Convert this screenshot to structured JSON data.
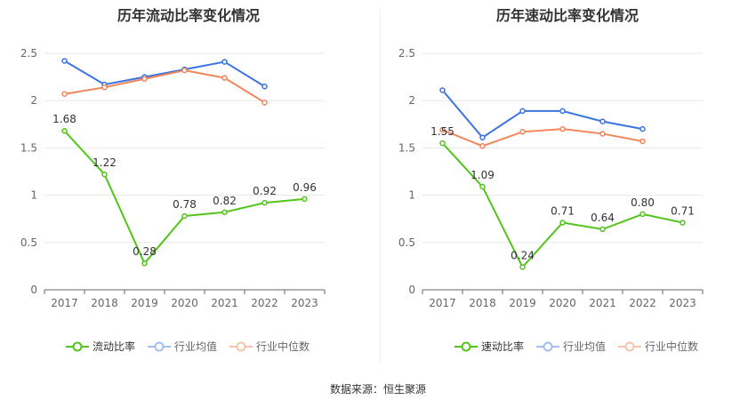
{
  "chart_data": [
    {
      "type": "line",
      "title": "历年流动比率变化情况",
      "categories": [
        "2017",
        "2018",
        "2019",
        "2020",
        "2021",
        "2022",
        "2023"
      ],
      "ylim": [
        0,
        2.5
      ],
      "yticks": [
        "0",
        "0.5",
        "1",
        "1.5",
        "2",
        "2.5"
      ],
      "grid": true,
      "legend_position": "bottom",
      "series": [
        {
          "name": "流动比率",
          "color": "#52c41a",
          "values": [
            1.68,
            1.22,
            0.28,
            0.78,
            0.82,
            0.92,
            0.96
          ],
          "labels": [
            "1.68",
            "1.22",
            "0.28",
            "0.78",
            "0.82",
            "0.92",
            "0.96"
          ]
        },
        {
          "name": "行业均值",
          "color": "#3b74e0",
          "values": [
            2.42,
            2.17,
            2.25,
            2.33,
            2.41,
            2.15,
            null
          ]
        },
        {
          "name": "行业中位数",
          "color": "#f2855a",
          "values": [
            2.07,
            2.14,
            2.23,
            2.32,
            2.24,
            1.98,
            null
          ]
        }
      ]
    },
    {
      "type": "line",
      "title": "历年速动比率变化情况",
      "categories": [
        "2017",
        "2018",
        "2019",
        "2020",
        "2021",
        "2022",
        "2023"
      ],
      "ylim": [
        0,
        2.5
      ],
      "yticks": [
        "0",
        "0.5",
        "1",
        "1.5",
        "2",
        "2.5"
      ],
      "grid": true,
      "legend_position": "bottom",
      "series": [
        {
          "name": "速动比率",
          "color": "#52c41a",
          "values": [
            1.55,
            1.09,
            0.24,
            0.71,
            0.64,
            0.8,
            0.71
          ],
          "labels": [
            "1.55",
            "1.09",
            "0.24",
            "0.71",
            "0.64",
            "0.80",
            "0.71"
          ]
        },
        {
          "name": "行业均值",
          "color": "#3b74e0",
          "values": [
            2.11,
            1.61,
            1.89,
            1.89,
            1.78,
            1.7,
            null
          ]
        },
        {
          "name": "行业中位数",
          "color": "#f2855a",
          "values": [
            1.69,
            1.52,
            1.67,
            1.7,
            1.65,
            1.57,
            null
          ]
        }
      ]
    }
  ],
  "legend_left": [
    "流动比率",
    "行业均值",
    "行业中位数"
  ],
  "legend_right": [
    "速动比率",
    "行业均值",
    "行业中位数"
  ],
  "footer": {
    "source": "数据来源：恒生聚源"
  }
}
